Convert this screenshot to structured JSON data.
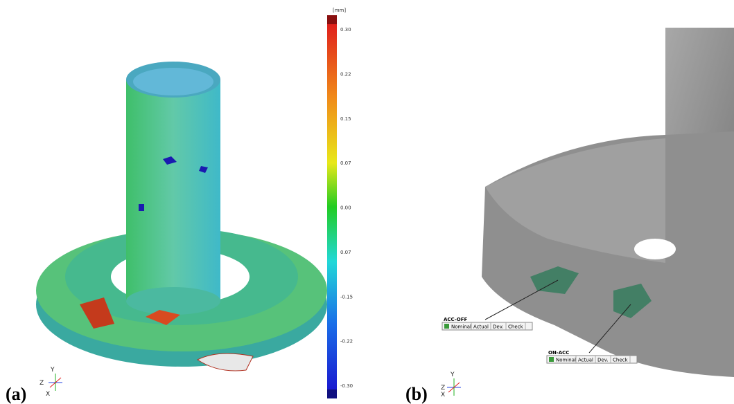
{
  "panel_a": {
    "label": "(a)",
    "scale": {
      "unit": "[mm]",
      "ticks": [
        "0.30",
        "0.22",
        "0.15",
        "0.07",
        "0.00",
        "0.07",
        "-0.15",
        "-0.22",
        "-0.30"
      ]
    },
    "triad": {
      "y": "Y",
      "z": "Z",
      "x": "X"
    }
  },
  "panel_b": {
    "label": "(b)",
    "callouts": [
      {
        "title": "ACC-OFF",
        "columns": [
          "Nominal",
          "Actual",
          "Dev.",
          "Check"
        ]
      },
      {
        "title": "ON-ACC",
        "columns": [
          "Nominal",
          "Actual",
          "Dev.",
          "Check"
        ]
      }
    ],
    "triad": {
      "y": "Y",
      "z": "Z",
      "x": "X"
    }
  }
}
